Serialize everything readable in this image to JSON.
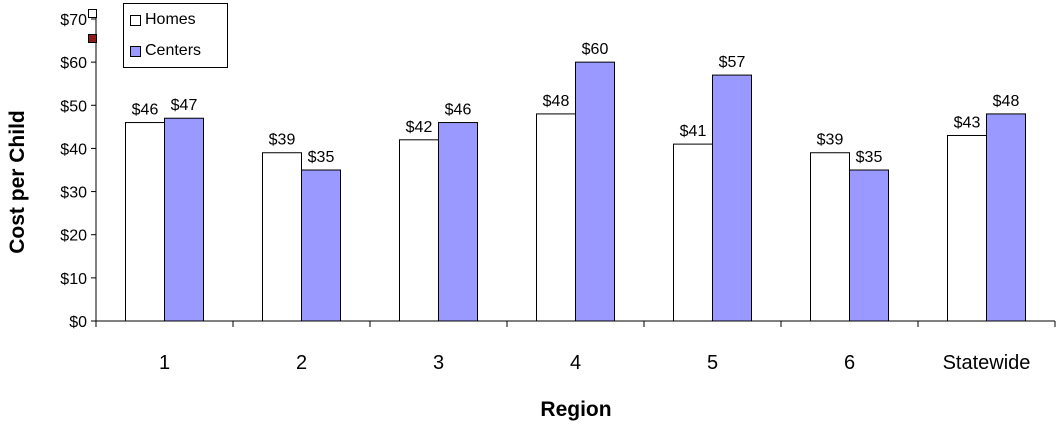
{
  "chart_data": {
    "type": "bar",
    "categories": [
      "1",
      "2",
      "3",
      "4",
      "5",
      "6",
      "Statewide"
    ],
    "series": [
      {
        "name": "Homes",
        "values": [
          46,
          39,
          42,
          48,
          41,
          39,
          43
        ],
        "labels": [
          "$46",
          "$39",
          "$42",
          "$48",
          "$41",
          "$39",
          "$43"
        ],
        "color": "#ffffff"
      },
      {
        "name": "Centers",
        "values": [
          47,
          35,
          46,
          60,
          57,
          35,
          48
        ],
        "labels": [
          "$47",
          "$35",
          "$46",
          "$60",
          "$57",
          "$35",
          "$48"
        ],
        "color": "#9999ff"
      }
    ],
    "xlabel": "Region",
    "ylabel": "Cost per Child",
    "ylim": [
      0,
      70
    ],
    "yticks": [
      0,
      10,
      20,
      30,
      40,
      50,
      60,
      70
    ],
    "ytick_labels": [
      "$0",
      "$10",
      "$20",
      "$30",
      "$40",
      "$50",
      "$60",
      "$70"
    ],
    "grid": false,
    "legend_position": "top-left"
  },
  "legend_items": [
    {
      "label": "Homes",
      "color": "#ffffff"
    },
    {
      "label": "Centers",
      "color": "#9999ff"
    }
  ],
  "stray_markers": [
    {
      "name": "white-square-marker",
      "color": "#ffffff"
    },
    {
      "name": "dark-red-square-marker",
      "color": "#8b1a1a"
    }
  ]
}
